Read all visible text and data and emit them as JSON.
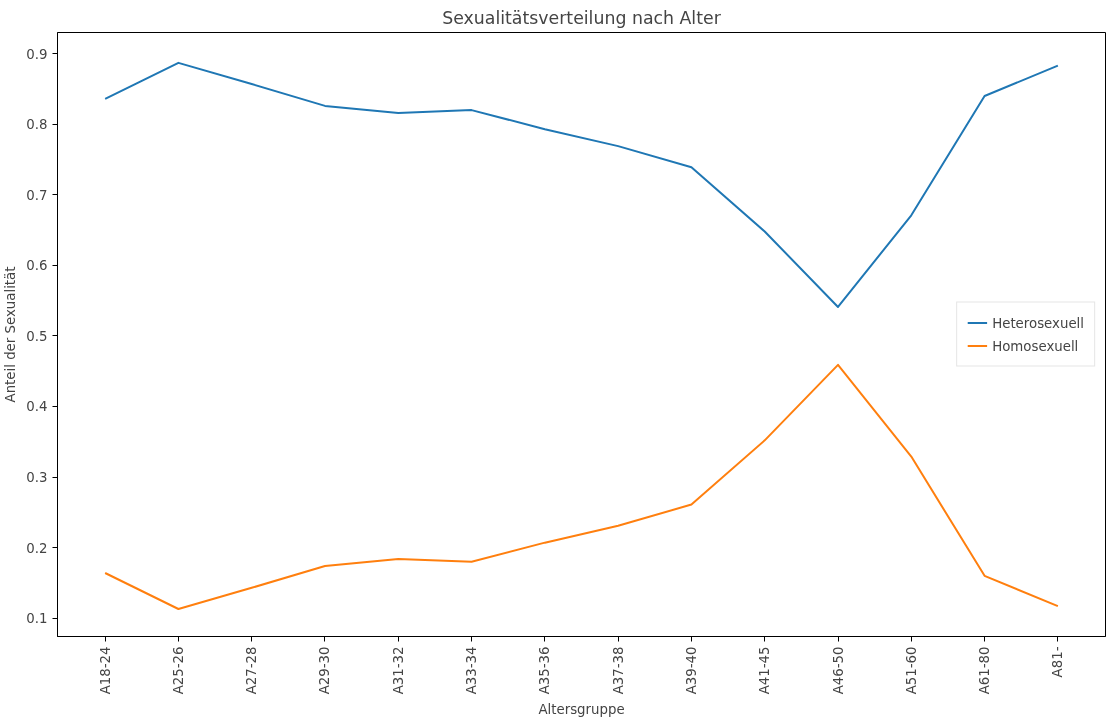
{
  "chart_data": {
    "type": "line",
    "title": "Sexualitätsverteilung nach Alter",
    "xlabel": "Altersgruppe",
    "ylabel": "Anteil der Sexualität",
    "categories": [
      "A18-24",
      "A25-26",
      "A27-28",
      "A29-30",
      "A31-32",
      "A33-34",
      "A35-36",
      "A37-38",
      "A39-40",
      "A41-45",
      "A46-50",
      "A51-60",
      "A61-80",
      "A81-"
    ],
    "series": [
      {
        "name": "Heterosexuell",
        "color": "#1f77b4",
        "values": [
          0.836,
          0.887,
          0.857,
          0.826,
          0.816,
          0.82,
          0.793,
          0.769,
          0.739,
          0.648,
          0.541,
          0.671,
          0.84,
          0.883
        ]
      },
      {
        "name": "Homosexuell",
        "color": "#ff7f0e",
        "values": [
          0.164,
          0.113,
          0.143,
          0.174,
          0.184,
          0.18,
          0.207,
          0.231,
          0.261,
          0.352,
          0.459,
          0.329,
          0.16,
          0.117
        ]
      }
    ],
    "ylim": [
      0.074,
      0.93
    ],
    "yticks": [
      0.1,
      0.2,
      0.3,
      0.4,
      0.5,
      0.6,
      0.7,
      0.8,
      0.9
    ],
    "grid": false,
    "legend": "right",
    "marker": "none",
    "line_style": "solid"
  }
}
